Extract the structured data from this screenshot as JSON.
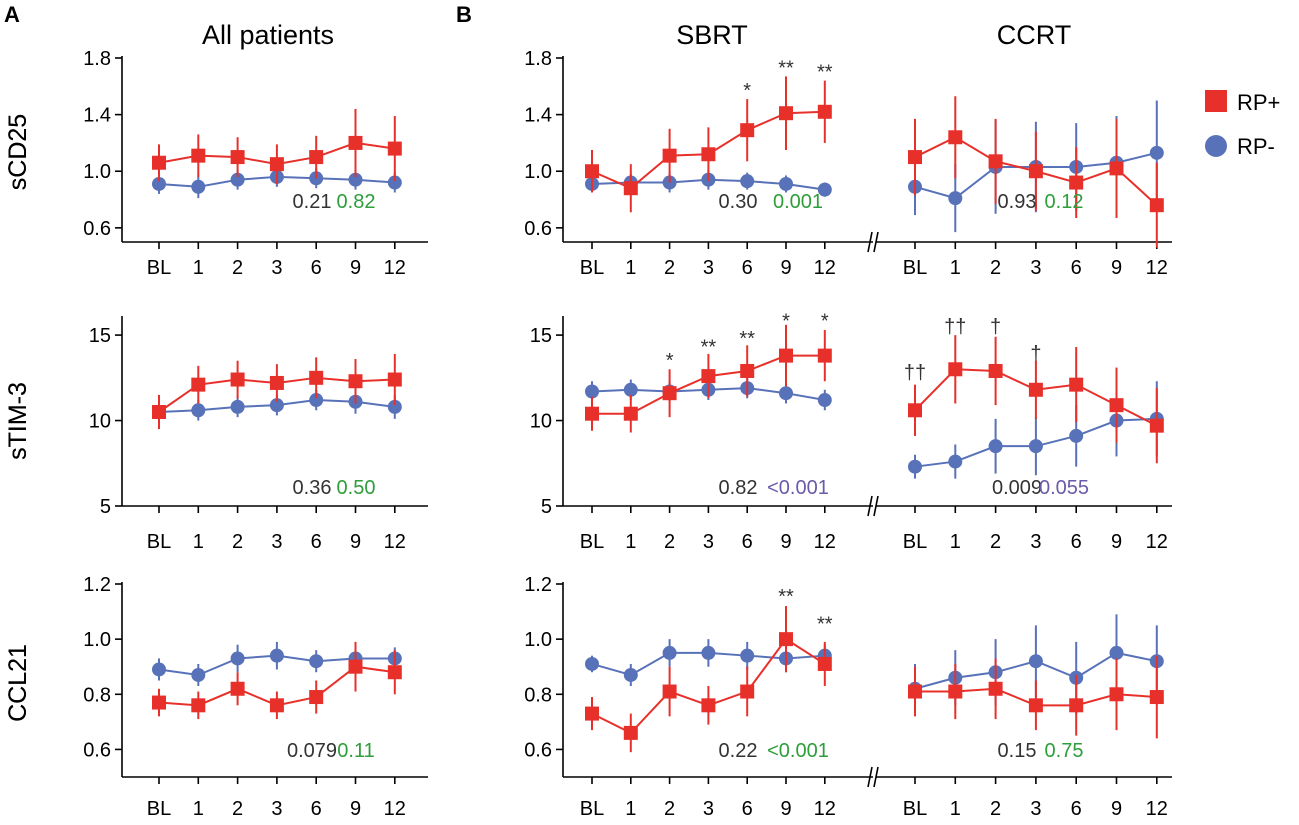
{
  "figure": {
    "panel_letters": [
      "A",
      "B"
    ],
    "column_titles": [
      "All patients",
      "SBRT",
      "CCRT"
    ],
    "row_labels": [
      "sCD25",
      "sTIM-3",
      "CCL21"
    ],
    "x_ticks": [
      "BL",
      "1",
      "2",
      "3",
      "6",
      "9",
      "12"
    ],
    "legend": [
      {
        "label": "RP+",
        "color": "#e8302b",
        "marker": "square"
      },
      {
        "label": "RP-",
        "color": "#5872b9",
        "marker": "circle"
      }
    ],
    "colors": {
      "rp_plus": "#e8302b",
      "rp_minus": "#5872b9",
      "p_gray": "#333333",
      "p_green": "#2e9e3b",
      "p_purple": "#6a5aa8"
    }
  },
  "chart_data": [
    {
      "type": "line",
      "id": "a-scd25",
      "column": "All patients",
      "ylabel": "sCD25",
      "ylim": [
        0.5,
        1.8
      ],
      "yticks": [
        "0.6",
        "1.0",
        "1.4",
        "1.8"
      ],
      "yticks_values": [
        0.6,
        1.0,
        1.4,
        1.8
      ],
      "series": [
        {
          "name": "RP+",
          "values": [
            1.06,
            1.11,
            1.1,
            1.05,
            1.1,
            1.2,
            1.16
          ],
          "err": [
            0.13,
            0.15,
            0.14,
            0.14,
            0.15,
            0.24,
            0.23
          ]
        },
        {
          "name": "RP-",
          "values": [
            0.91,
            0.89,
            0.94,
            0.96,
            0.95,
            0.94,
            0.92
          ],
          "err": [
            0.07,
            0.08,
            0.07,
            0.07,
            0.07,
            0.07,
            0.07
          ]
        }
      ],
      "markers": [],
      "p_values": [
        {
          "text": "0.21",
          "color": "gray"
        },
        {
          "text": "0.82",
          "color": "green"
        }
      ]
    },
    {
      "type": "line",
      "id": "b-sbrt-scd25",
      "column": "SBRT",
      "ylabel": "sCD25",
      "ylim": [
        0.5,
        1.8
      ],
      "yticks": [
        "0.6",
        "1.0",
        "1.4",
        "1.8"
      ],
      "yticks_values": [
        0.6,
        1.0,
        1.4,
        1.8
      ],
      "series": [
        {
          "name": "RP+",
          "values": [
            1.0,
            0.88,
            1.11,
            1.12,
            1.29,
            1.41,
            1.42
          ],
          "err": [
            0.15,
            0.17,
            0.19,
            0.19,
            0.22,
            0.26,
            0.22
          ]
        },
        {
          "name": "RP-",
          "values": [
            0.91,
            0.92,
            0.92,
            0.94,
            0.93,
            0.91,
            0.87
          ],
          "err": [
            0.06,
            0.06,
            0.07,
            0.07,
            0.06,
            0.06,
            0.05
          ]
        }
      ],
      "markers": [
        {
          "index": 4,
          "text": "*",
          "value": 1.58
        },
        {
          "index": 5,
          "text": "**",
          "value": 1.74
        },
        {
          "index": 6,
          "text": "**",
          "value": 1.71
        }
      ],
      "p_values": [
        {
          "text": "0.30",
          "color": "gray"
        },
        {
          "text": "0.001",
          "color": "green"
        }
      ]
    },
    {
      "type": "line",
      "id": "b-ccrt-scd25",
      "column": "CCRT",
      "ylabel": "",
      "ylim": [
        0.5,
        1.8
      ],
      "yticks": [],
      "yticks_values": [],
      "series": [
        {
          "name": "RP+",
          "values": [
            1.1,
            1.24,
            1.07,
            1.0,
            0.92,
            1.02,
            0.76
          ],
          "err": [
            0.27,
            0.29,
            0.3,
            0.28,
            0.25,
            0.35,
            0.3
          ]
        },
        {
          "name": "RP-",
          "values": [
            0.89,
            0.81,
            1.03,
            1.03,
            1.03,
            1.06,
            1.13
          ],
          "err": [
            0.2,
            0.24,
            0.33,
            0.32,
            0.31,
            0.33,
            0.37
          ]
        }
      ],
      "markers": [],
      "p_values": [
        {
          "text": "0.93",
          "color": "gray"
        },
        {
          "text": "0.12",
          "color": "green"
        }
      ]
    },
    {
      "type": "line",
      "id": "a-stim3",
      "column": "All patients",
      "ylabel": "sTIM-3",
      "ylim": [
        5,
        16
      ],
      "yticks": [
        "5",
        "10",
        "15"
      ],
      "yticks_values": [
        5,
        10,
        15
      ],
      "series": [
        {
          "name": "RP+",
          "values": [
            10.5,
            12.1,
            12.4,
            12.2,
            12.5,
            12.3,
            12.4
          ],
          "err": [
            1.0,
            1.1,
            1.1,
            1.1,
            1.2,
            1.3,
            1.5
          ]
        },
        {
          "name": "RP-",
          "values": [
            10.5,
            10.6,
            10.8,
            10.9,
            11.2,
            11.1,
            10.8
          ],
          "err": [
            0.5,
            0.6,
            0.6,
            0.6,
            0.6,
            0.7,
            0.7
          ]
        }
      ],
      "markers": [],
      "p_values": [
        {
          "text": "0.36",
          "color": "gray"
        },
        {
          "text": "0.50",
          "color": "green"
        }
      ]
    },
    {
      "type": "line",
      "id": "b-sbrt-stim3",
      "column": "SBRT",
      "ylabel": "sTIM-3",
      "ylim": [
        5,
        16
      ],
      "yticks": [
        "5",
        "10",
        "15"
      ],
      "yticks_values": [
        5,
        10,
        15
      ],
      "series": [
        {
          "name": "RP+",
          "values": [
            10.4,
            10.4,
            11.6,
            12.6,
            12.9,
            13.8,
            13.8
          ],
          "err": [
            1.0,
            1.1,
            1.4,
            1.3,
            1.5,
            1.8,
            1.5
          ]
        },
        {
          "name": "RP-",
          "values": [
            11.7,
            11.8,
            11.7,
            11.8,
            11.9,
            11.6,
            11.2
          ],
          "err": [
            0.6,
            0.6,
            0.6,
            0.6,
            0.6,
            0.6,
            0.6
          ]
        }
      ],
      "markers": [
        {
          "index": 2,
          "text": "*",
          "value": 13.6
        },
        {
          "index": 3,
          "text": "**",
          "value": 14.4
        },
        {
          "index": 4,
          "text": "**",
          "value": 14.9
        },
        {
          "index": 5,
          "text": "*",
          "value": 15.9
        },
        {
          "index": 6,
          "text": "*",
          "value": 15.9
        }
      ],
      "p_values": [
        {
          "text": "0.82",
          "color": "gray"
        },
        {
          "text": "<0.001",
          "color": "purple"
        }
      ]
    },
    {
      "type": "line",
      "id": "b-ccrt-stim3",
      "column": "CCRT",
      "ylabel": "",
      "ylim": [
        5,
        16
      ],
      "yticks": [],
      "yticks_values": [],
      "series": [
        {
          "name": "RP+",
          "values": [
            10.6,
            13.0,
            12.9,
            11.8,
            12.1,
            10.9,
            9.7
          ],
          "err": [
            1.5,
            2.0,
            2.0,
            1.7,
            2.2,
            2.2,
            2.2
          ]
        },
        {
          "name": "RP-",
          "values": [
            7.3,
            7.6,
            8.5,
            8.5,
            9.1,
            10.0,
            10.1
          ],
          "err": [
            0.7,
            1.0,
            1.6,
            1.7,
            1.8,
            2.1,
            2.2
          ]
        }
      ],
      "markers": [
        {
          "index": 0,
          "text": "††",
          "value": 12.9
        },
        {
          "index": 1,
          "text": "††",
          "value": 15.6
        },
        {
          "index": 2,
          "text": "†",
          "value": 15.6
        },
        {
          "index": 3,
          "text": "†",
          "value": 14.0
        }
      ],
      "p_values": [
        {
          "text": "0.009",
          "color": "gray"
        },
        {
          "text": "0.055",
          "color": "purple"
        }
      ]
    },
    {
      "type": "line",
      "id": "a-ccl21",
      "column": "All patients",
      "ylabel": "CCL21",
      "ylim": [
        0.5,
        1.2
      ],
      "yticks": [
        "0.6",
        "0.8",
        "1.0",
        "1.2"
      ],
      "yticks_values": [
        0.6,
        0.8,
        1.0,
        1.2
      ],
      "series": [
        {
          "name": "RP+",
          "values": [
            0.77,
            0.76,
            0.82,
            0.76,
            0.79,
            0.9,
            0.88
          ],
          "err": [
            0.05,
            0.05,
            0.06,
            0.05,
            0.06,
            0.09,
            0.08
          ]
        },
        {
          "name": "RP-",
          "values": [
            0.89,
            0.87,
            0.93,
            0.94,
            0.92,
            0.93,
            0.93
          ],
          "err": [
            0.04,
            0.04,
            0.05,
            0.05,
            0.04,
            0.05,
            0.04
          ]
        }
      ],
      "markers": [],
      "p_values": [
        {
          "text": "0.079",
          "color": "gray"
        },
        {
          "text": "0.11",
          "color": "green"
        }
      ]
    },
    {
      "type": "line",
      "id": "b-sbrt-ccl21",
      "column": "SBRT",
      "ylabel": "CCL21",
      "ylim": [
        0.5,
        1.2
      ],
      "yticks": [
        "0.6",
        "0.8",
        "1.0",
        "1.2"
      ],
      "yticks_values": [
        0.6,
        0.8,
        1.0,
        1.2
      ],
      "series": [
        {
          "name": "RP+",
          "values": [
            0.73,
            0.66,
            0.81,
            0.76,
            0.81,
            1.0,
            0.91
          ],
          "err": [
            0.06,
            0.07,
            0.09,
            0.07,
            0.09,
            0.12,
            0.08
          ]
        },
        {
          "name": "RP-",
          "values": [
            0.91,
            0.87,
            0.95,
            0.95,
            0.94,
            0.93,
            0.94
          ],
          "err": [
            0.03,
            0.04,
            0.05,
            0.05,
            0.05,
            0.05,
            0.04
          ]
        }
      ],
      "markers": [
        {
          "index": 5,
          "text": "**",
          "value": 1.16
        },
        {
          "index": 6,
          "text": "**",
          "value": 1.06
        }
      ],
      "p_values": [
        {
          "text": "0.22",
          "color": "gray"
        },
        {
          "text": "<0.001",
          "color": "green"
        }
      ]
    },
    {
      "type": "line",
      "id": "b-ccrt-ccl21",
      "column": "CCRT",
      "ylabel": "",
      "ylim": [
        0.5,
        1.2
      ],
      "yticks": [],
      "yticks_values": [],
      "series": [
        {
          "name": "RP+",
          "values": [
            0.81,
            0.81,
            0.82,
            0.76,
            0.76,
            0.8,
            0.79
          ],
          "err": [
            0.09,
            0.1,
            0.11,
            0.09,
            0.11,
            0.13,
            0.15
          ]
        },
        {
          "name": "RP-",
          "values": [
            0.82,
            0.86,
            0.88,
            0.92,
            0.86,
            0.95,
            0.92
          ],
          "err": [
            0.09,
            0.1,
            0.12,
            0.13,
            0.13,
            0.14,
            0.13
          ]
        }
      ],
      "markers": [],
      "p_values": [
        {
          "text": "0.15",
          "color": "gray"
        },
        {
          "text": "0.75",
          "color": "green"
        }
      ]
    }
  ]
}
